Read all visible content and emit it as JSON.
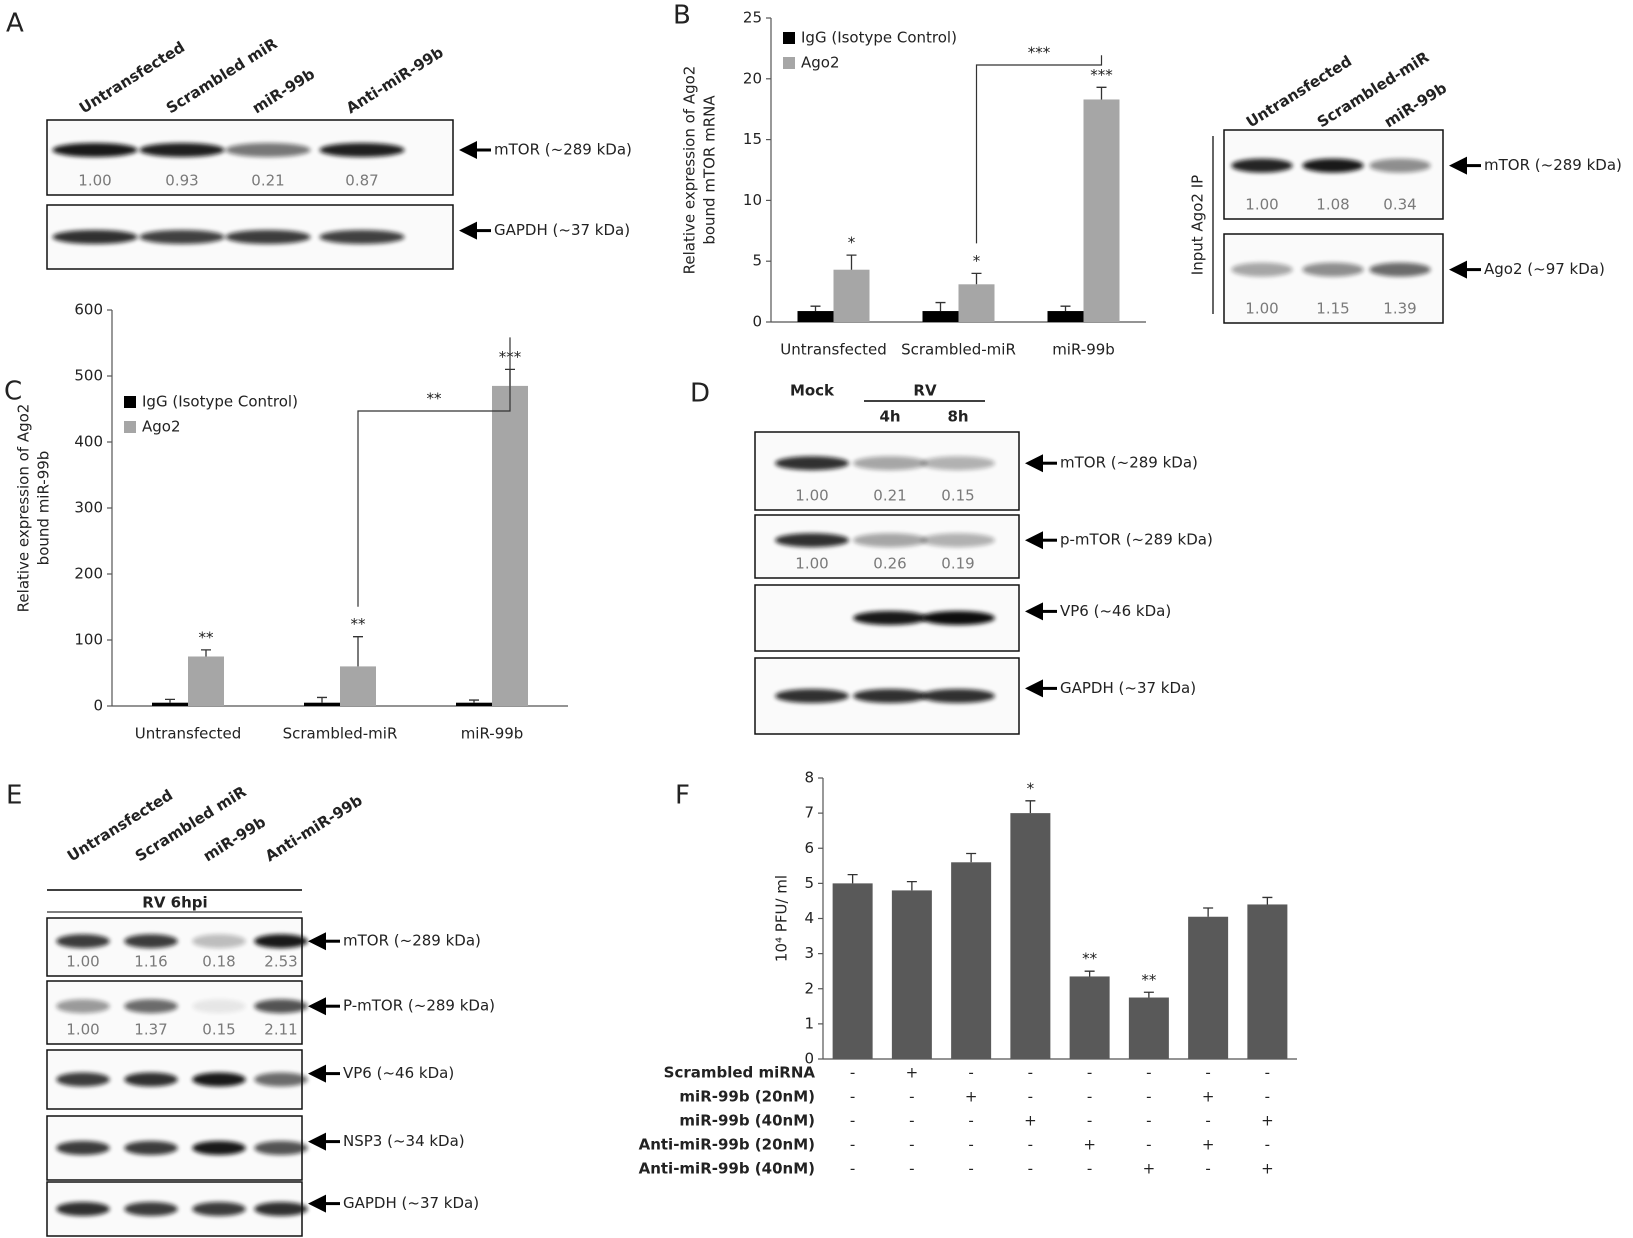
{
  "panel_letters": [
    "A",
    "B",
    "C",
    "D",
    "E",
    "F"
  ],
  "panels": {
    "A": {
      "lanes": [
        "Untransfected",
        "Scrambled miR",
        "miR-99b",
        "Anti-miR-99b"
      ],
      "bands": [
        {
          "label": "mTOR (~289 kDa)",
          "quant": [
            "1.00",
            "0.93",
            "0.21",
            "0.87"
          ]
        },
        {
          "label": "GAPDH (~37 kDa)"
        }
      ]
    },
    "B": {
      "lanes": [
        "Untransfected",
        "Scrambled-miR",
        "miR-99b"
      ],
      "side_label": "Input Ago2 IP",
      "bands": [
        {
          "label": "mTOR (~289 kDa)",
          "quant": [
            "1.00",
            "1.08",
            "0.34"
          ]
        },
        {
          "label": "Ago2 (~97 kDa)",
          "quant": [
            "1.00",
            "1.15",
            "1.39"
          ]
        }
      ]
    },
    "D": {
      "header": {
        "mock": "Mock",
        "rv": "RV",
        "times": [
          "4h",
          "8h"
        ]
      },
      "bands": [
        {
          "label": "mTOR (~289 kDa)",
          "quant": [
            "1.00",
            "0.21",
            "0.15"
          ]
        },
        {
          "label": "p-mTOR (~289 kDa)",
          "quant": [
            "1.00",
            "0.26",
            "0.19"
          ]
        },
        {
          "label": "VP6 (~46 kDa)"
        },
        {
          "label": "GAPDH (~37 kDa)"
        }
      ]
    },
    "E": {
      "lanes": [
        "Untransfected",
        "Scrambled miR",
        "miR-99b",
        "Anti-miR-99b"
      ],
      "header": "RV 6hpi",
      "bands": [
        {
          "label": "mTOR (~289 kDa)",
          "quant": [
            "1.00",
            "1.16",
            "0.18",
            "2.53"
          ]
        },
        {
          "label": "P-mTOR (~289 kDa)",
          "quant": [
            "1.00",
            "1.37",
            "0.15",
            "2.11"
          ]
        },
        {
          "label": "VP6 (~46 kDa)"
        },
        {
          "label": "NSP3 (~34 kDa)"
        },
        {
          "label": "GAPDH (~37 kDa)"
        }
      ]
    }
  },
  "chart_data": [
    {
      "type": "bar",
      "ylabel": [
        "Relative expression of Ago2",
        "bound mTOR mRNA"
      ],
      "categories": [
        "Untransfected",
        "Scrambled-miR",
        "miR-99b"
      ],
      "series": [
        {
          "name": "IgG (Isotype Control)",
          "color": "#000000",
          "values": [
            0.9,
            0.9,
            0.9
          ],
          "errors": [
            0.4,
            0.7,
            0.4
          ]
        },
        {
          "name": "Ago2",
          "color": "#a6a6a6",
          "values": [
            4.3,
            3.1,
            18.3
          ],
          "errors": [
            1.2,
            0.9,
            1.0
          ],
          "significance": [
            "*",
            "*",
            "***"
          ]
        }
      ],
      "bracket_label": "***",
      "ylim": [
        0,
        25
      ],
      "yticks": [
        0,
        5,
        10,
        15,
        20,
        25
      ],
      "legend": "upper-left"
    },
    {
      "type": "bar",
      "ylabel": [
        "Relative expression of Ago2",
        "bound miR-99b"
      ],
      "categories": [
        "Untransfected",
        "Scrambled-miR",
        "miR-99b"
      ],
      "series": [
        {
          "name": "IgG (Isotype Control)",
          "color": "#000000",
          "values": [
            5,
            5,
            5
          ],
          "errors": [
            5,
            8,
            4
          ]
        },
        {
          "name": "Ago2",
          "color": "#a6a6a6",
          "values": [
            75,
            60,
            485
          ],
          "errors": [
            10,
            45,
            25
          ],
          "significance": [
            "**",
            "**",
            "***"
          ]
        }
      ],
      "bracket_label": "**",
      "ylim": [
        0,
        600
      ],
      "yticks": [
        0,
        100,
        200,
        300,
        400,
        500,
        600
      ],
      "legend": "upper-left"
    },
    {
      "type": "bar",
      "ylabel": "10⁴ PFU/ ml",
      "series": [
        {
          "color": "#595959",
          "values": [
            5.0,
            4.8,
            5.6,
            7.0,
            2.35,
            1.75,
            4.05,
            4.4
          ],
          "errors": [
            0.25,
            0.25,
            0.25,
            0.35,
            0.15,
            0.15,
            0.25,
            0.2
          ],
          "significance": [
            null,
            null,
            null,
            "*",
            "**",
            "**",
            null,
            null
          ]
        }
      ],
      "ylim": [
        0,
        8
      ],
      "yticks": [
        0,
        1,
        2,
        3,
        4,
        5,
        6,
        7,
        8
      ],
      "conditions": [
        {
          "label": "Scrambled miRNA",
          "marks": [
            "-",
            "+",
            "-",
            "-",
            "-",
            "-",
            "-",
            "-"
          ]
        },
        {
          "label": "miR-99b (20nM)",
          "marks": [
            "-",
            "-",
            "+",
            "-",
            "-",
            "-",
            "+",
            "-"
          ]
        },
        {
          "label": "miR-99b (40nM)",
          "marks": [
            "-",
            "-",
            "-",
            "+",
            "-",
            "-",
            "-",
            "+"
          ]
        },
        {
          "label": "Anti-miR-99b (20nM)",
          "marks": [
            "-",
            "-",
            "-",
            "-",
            "+",
            "-",
            "+",
            "-"
          ]
        },
        {
          "label": "Anti-miR-99b (40nM)",
          "marks": [
            "-",
            "-",
            "-",
            "-",
            "-",
            "+",
            "-",
            "+"
          ]
        }
      ]
    }
  ]
}
